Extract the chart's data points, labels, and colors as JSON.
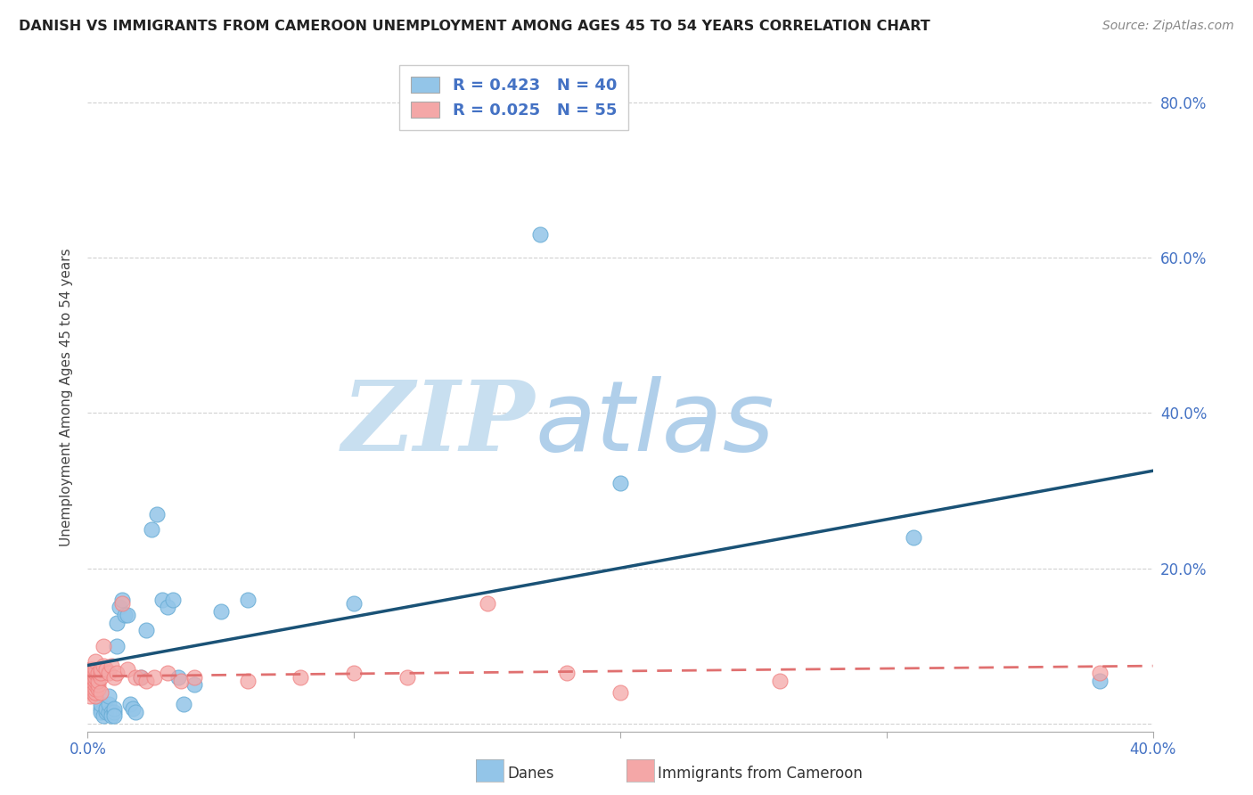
{
  "title": "DANISH VS IMMIGRANTS FROM CAMEROON UNEMPLOYMENT AMONG AGES 45 TO 54 YEARS CORRELATION CHART",
  "source": "Source: ZipAtlas.com",
  "ylabel": "Unemployment Among Ages 45 to 54 years",
  "xlim": [
    0.0,
    0.4
  ],
  "ylim": [
    -0.01,
    0.85
  ],
  "yticks": [
    0.0,
    0.2,
    0.4,
    0.6,
    0.8
  ],
  "ytick_labels_right": [
    "",
    "20.0%",
    "40.0%",
    "60.0%",
    "80.0%"
  ],
  "xtick_positions": [
    0.0,
    0.1,
    0.2,
    0.3,
    0.4
  ],
  "danes_color": "#93c5e8",
  "cameroon_color": "#f4a7a7",
  "danes_edge_color": "#6baed6",
  "cameroon_edge_color": "#f08080",
  "danes_R": 0.423,
  "danes_N": 40,
  "cameroon_R": 0.025,
  "cameroon_N": 55,
  "line_blue": "#1a5276",
  "line_pink": "#e07070",
  "watermark_zip": "ZIP",
  "watermark_atlas": "atlas",
  "watermark_color_zip": "#c8dff0",
  "watermark_color_atlas": "#b0cfea",
  "danes_label": "Danes",
  "cameroon_label": "Immigrants from Cameroon",
  "danes_x": [
    0.005,
    0.005,
    0.005,
    0.006,
    0.007,
    0.007,
    0.008,
    0.008,
    0.008,
    0.009,
    0.009,
    0.01,
    0.01,
    0.01,
    0.011,
    0.011,
    0.012,
    0.013,
    0.014,
    0.015,
    0.016,
    0.017,
    0.018,
    0.02,
    0.022,
    0.024,
    0.026,
    0.028,
    0.03,
    0.032,
    0.034,
    0.036,
    0.04,
    0.05,
    0.06,
    0.1,
    0.17,
    0.2,
    0.31,
    0.38
  ],
  "danes_y": [
    0.02,
    0.015,
    0.025,
    0.01,
    0.015,
    0.02,
    0.015,
    0.025,
    0.035,
    0.015,
    0.01,
    0.015,
    0.02,
    0.01,
    0.1,
    0.13,
    0.15,
    0.16,
    0.14,
    0.14,
    0.025,
    0.02,
    0.015,
    0.06,
    0.12,
    0.25,
    0.27,
    0.16,
    0.15,
    0.16,
    0.06,
    0.025,
    0.05,
    0.145,
    0.16,
    0.155,
    0.63,
    0.31,
    0.24,
    0.055
  ],
  "cameroon_x": [
    0.001,
    0.001,
    0.001,
    0.001,
    0.001,
    0.002,
    0.002,
    0.002,
    0.002,
    0.002,
    0.002,
    0.002,
    0.002,
    0.003,
    0.003,
    0.003,
    0.003,
    0.003,
    0.003,
    0.003,
    0.003,
    0.003,
    0.004,
    0.004,
    0.004,
    0.004,
    0.005,
    0.005,
    0.005,
    0.005,
    0.006,
    0.006,
    0.007,
    0.008,
    0.009,
    0.01,
    0.011,
    0.013,
    0.015,
    0.018,
    0.02,
    0.022,
    0.025,
    0.03,
    0.035,
    0.04,
    0.06,
    0.08,
    0.1,
    0.12,
    0.15,
    0.18,
    0.2,
    0.26,
    0.38
  ],
  "cameroon_y": [
    0.04,
    0.055,
    0.065,
    0.07,
    0.035,
    0.045,
    0.05,
    0.055,
    0.06,
    0.065,
    0.07,
    0.045,
    0.04,
    0.035,
    0.04,
    0.045,
    0.05,
    0.055,
    0.06,
    0.065,
    0.07,
    0.08,
    0.045,
    0.05,
    0.055,
    0.065,
    0.04,
    0.06,
    0.065,
    0.07,
    0.075,
    0.1,
    0.07,
    0.065,
    0.075,
    0.06,
    0.065,
    0.155,
    0.07,
    0.06,
    0.06,
    0.055,
    0.06,
    0.065,
    0.055,
    0.06,
    0.055,
    0.06,
    0.065,
    0.06,
    0.155,
    0.065,
    0.04,
    0.055,
    0.065
  ],
  "grid_color": "#cccccc",
  "tick_color": "#aaaaaa",
  "label_color": "#4472c4",
  "title_color": "#222222",
  "source_color": "#888888"
}
